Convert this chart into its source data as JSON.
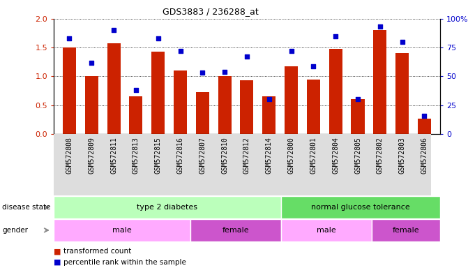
{
  "title": "GDS3883 / 236288_at",
  "samples": [
    "GSM572808",
    "GSM572809",
    "GSM572811",
    "GSM572813",
    "GSM572815",
    "GSM572816",
    "GSM572807",
    "GSM572810",
    "GSM572812",
    "GSM572814",
    "GSM572800",
    "GSM572801",
    "GSM572804",
    "GSM572805",
    "GSM572802",
    "GSM572803",
    "GSM572806"
  ],
  "bar_values": [
    1.5,
    1.0,
    1.57,
    0.65,
    1.43,
    1.1,
    0.73,
    1.0,
    0.93,
    0.65,
    1.18,
    0.95,
    1.48,
    0.6,
    1.8,
    1.4,
    0.27
  ],
  "dot_values": [
    83,
    62,
    90,
    38,
    83,
    72,
    53,
    54,
    67,
    30,
    72,
    59,
    85,
    30,
    93,
    80,
    16
  ],
  "ylim_left": [
    0,
    2
  ],
  "ylim_right": [
    0,
    100
  ],
  "yticks_left": [
    0,
    0.5,
    1.0,
    1.5,
    2.0
  ],
  "yticks_right": [
    0,
    25,
    50,
    75,
    100
  ],
  "bar_color": "#cc2200",
  "dot_color": "#0000cc",
  "disease_state": [
    {
      "label": "type 2 diabetes",
      "start": 0,
      "end": 10,
      "color": "#bbffbb"
    },
    {
      "label": "normal glucose tolerance",
      "start": 10,
      "end": 17,
      "color": "#66dd66"
    }
  ],
  "gender_groups": [
    {
      "label": "male",
      "start": 0,
      "end": 6,
      "color": "#ffaaff"
    },
    {
      "label": "female",
      "start": 6,
      "end": 10,
      "color": "#cc55cc"
    },
    {
      "label": "male",
      "start": 10,
      "end": 14,
      "color": "#ffaaff"
    },
    {
      "label": "female",
      "start": 14,
      "end": 17,
      "color": "#cc55cc"
    }
  ],
  "legend_items": [
    {
      "label": "transformed count",
      "color": "#cc2200"
    },
    {
      "label": "percentile rank within the sample",
      "color": "#0000cc"
    }
  ],
  "disease_state_label": "disease state",
  "gender_label": "gender",
  "background_color": "#ffffff",
  "tick_label_fontsize": 7,
  "bar_width": 0.6
}
